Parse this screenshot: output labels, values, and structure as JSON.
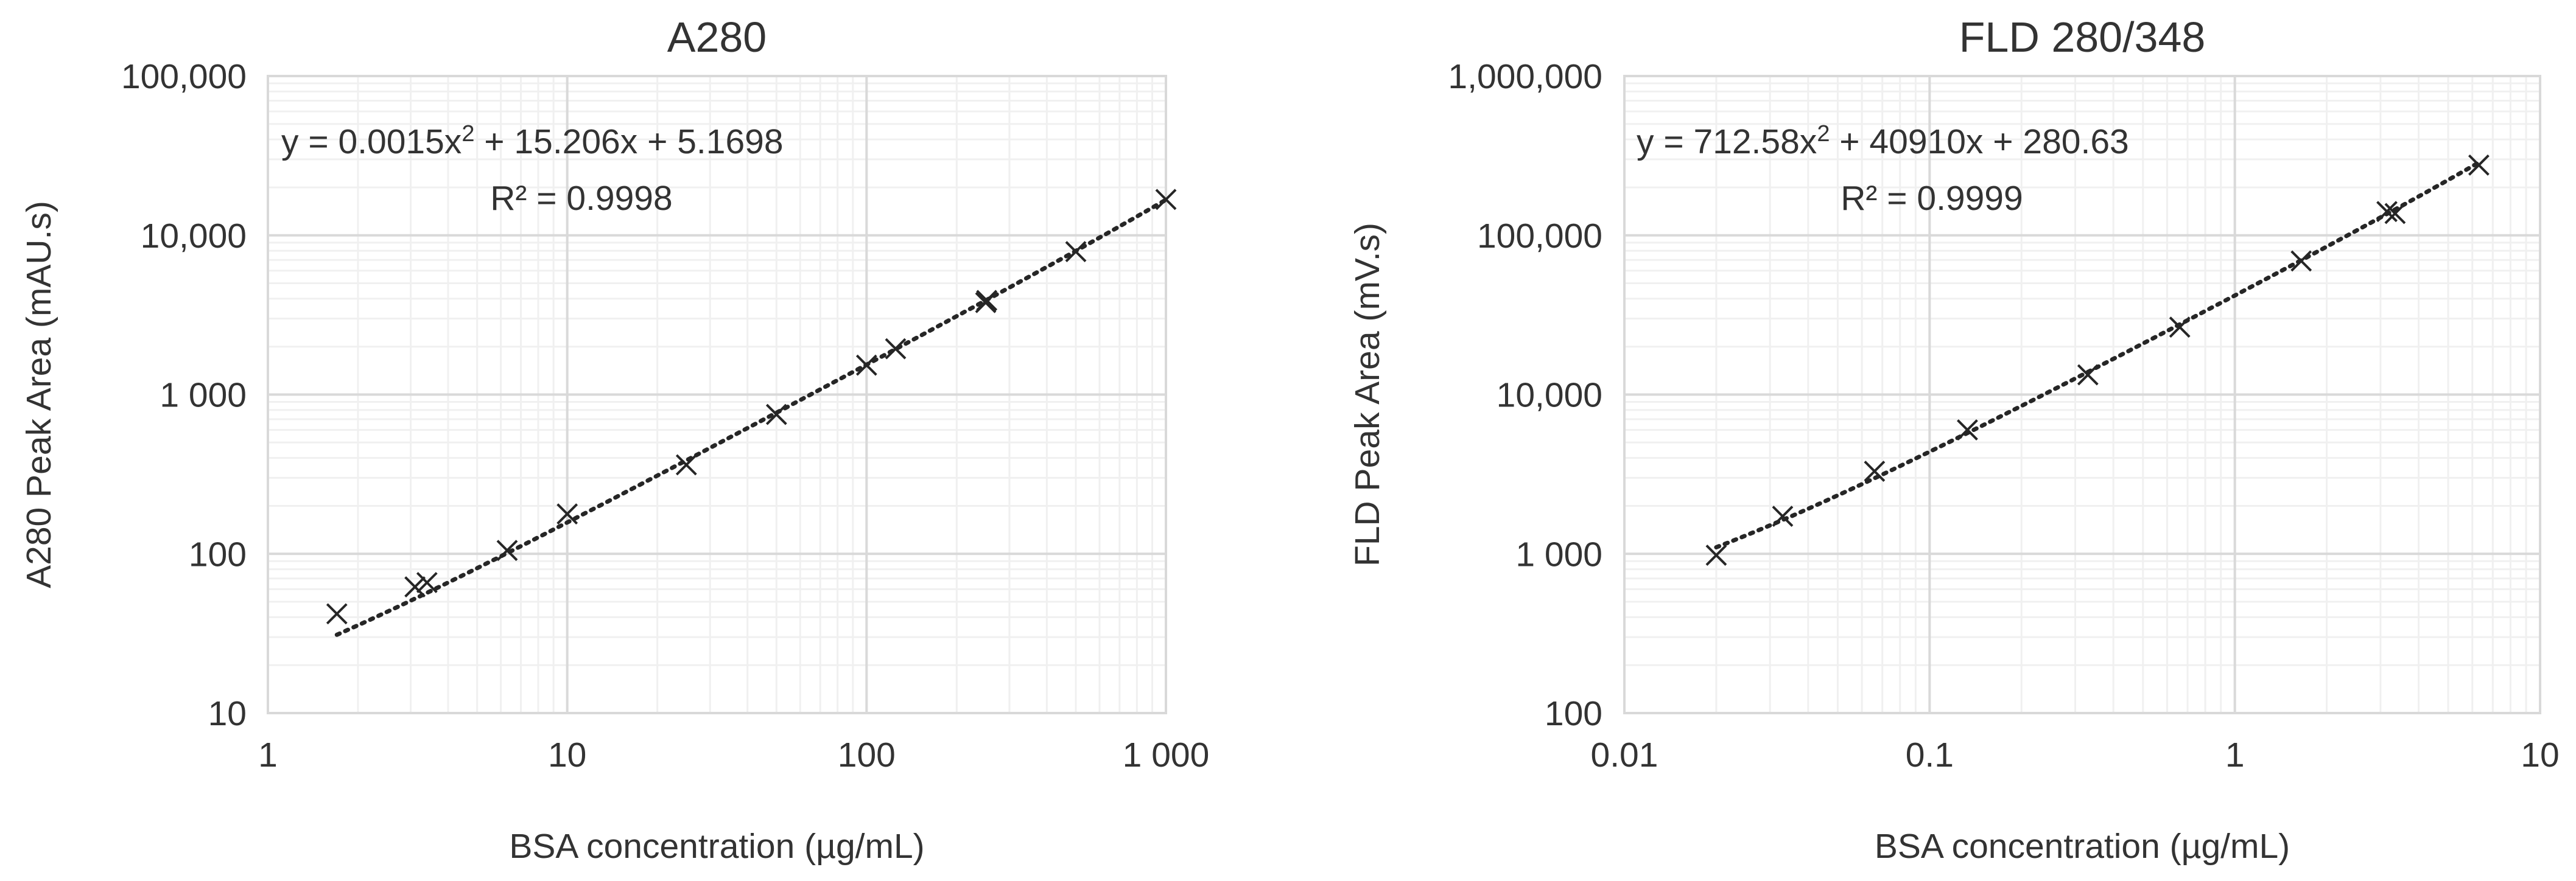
{
  "chart_data": [
    {
      "type": "scatter",
      "title": "A280",
      "xlabel": "BSA concentration (µg/mL)",
      "ylabel": "A280 Peak Area (mAU.s)",
      "xscale": "log",
      "yscale": "log",
      "xlim": [
        1,
        1000
      ],
      "ylim": [
        10,
        100000
      ],
      "xticks": [
        {
          "value": 1,
          "label": "1"
        },
        {
          "value": 10,
          "label": "10"
        },
        {
          "value": 100,
          "label": "100"
        },
        {
          "value": 1000,
          "label": "1 000"
        }
      ],
      "yticks": [
        {
          "value": 10,
          "label": "10"
        },
        {
          "value": 100,
          "label": "100"
        },
        {
          "value": 1000,
          "label": "1 000"
        },
        {
          "value": 10000,
          "label": "10,000"
        },
        {
          "value": 100000,
          "label": "100,000"
        }
      ],
      "grid": true,
      "marker": "x",
      "series": [
        {
          "x": [
            1.7,
            3.1,
            3.4,
            6.3,
            10,
            25,
            50,
            100,
            125,
            250,
            252,
            500,
            1000
          ],
          "y": [
            42,
            62,
            66,
            105,
            178,
            362,
            750,
            1530,
            1940,
            3780,
            3900,
            7900,
            16800
          ]
        }
      ],
      "trendline": {
        "type": "polynomial",
        "order": 2,
        "coefficients": [
          0.0015,
          15.206,
          5.1698
        ],
        "x_range": [
          1.7,
          1000
        ],
        "style": "dotted"
      },
      "annotations": {
        "equation": {
          "prefix": "y = 0.0015x",
          "power": "2",
          "suffix": " + 15.206x + 5.1698"
        },
        "r_squared": "R² = 0.9998"
      }
    },
    {
      "type": "scatter",
      "title": "FLD 280/348",
      "xlabel": "BSA concentration (µg/mL)",
      "ylabel": "FLD Peak Area (mV.s)",
      "xscale": "log",
      "yscale": "log",
      "xlim": [
        0.01,
        10
      ],
      "ylim": [
        100,
        1000000
      ],
      "xticks": [
        {
          "value": 0.01,
          "label": "0.01"
        },
        {
          "value": 0.1,
          "label": "0.1"
        },
        {
          "value": 1,
          "label": "1"
        },
        {
          "value": 10,
          "label": "10"
        }
      ],
      "yticks": [
        {
          "value": 100,
          "label": "100"
        },
        {
          "value": 1000,
          "label": "1 000"
        },
        {
          "value": 10000,
          "label": "10,000"
        },
        {
          "value": 100000,
          "label": "100,000"
        },
        {
          "value": 1000000,
          "label": "1,000,000"
        }
      ],
      "grid": true,
      "marker": "x",
      "series": [
        {
          "x": [
            0.02,
            0.033,
            0.066,
            0.133,
            0.33,
            0.66,
            1.65,
            3.15,
            3.35,
            6.3
          ],
          "y": [
            980,
            1720,
            3300,
            6000,
            13300,
            26500,
            69000,
            141000,
            137000,
            276000
          ]
        }
      ],
      "trendline": {
        "type": "polynomial",
        "order": 2,
        "coefficients": [
          712.58,
          40910,
          280.63
        ],
        "x_range": [
          0.02,
          6.3
        ],
        "style": "dotted"
      },
      "annotations": {
        "equation": {
          "prefix": "y = 712.58x",
          "power": "2",
          "suffix": " + 40910x + 280.63"
        },
        "r_squared": "R² = 0.9999"
      }
    }
  ]
}
